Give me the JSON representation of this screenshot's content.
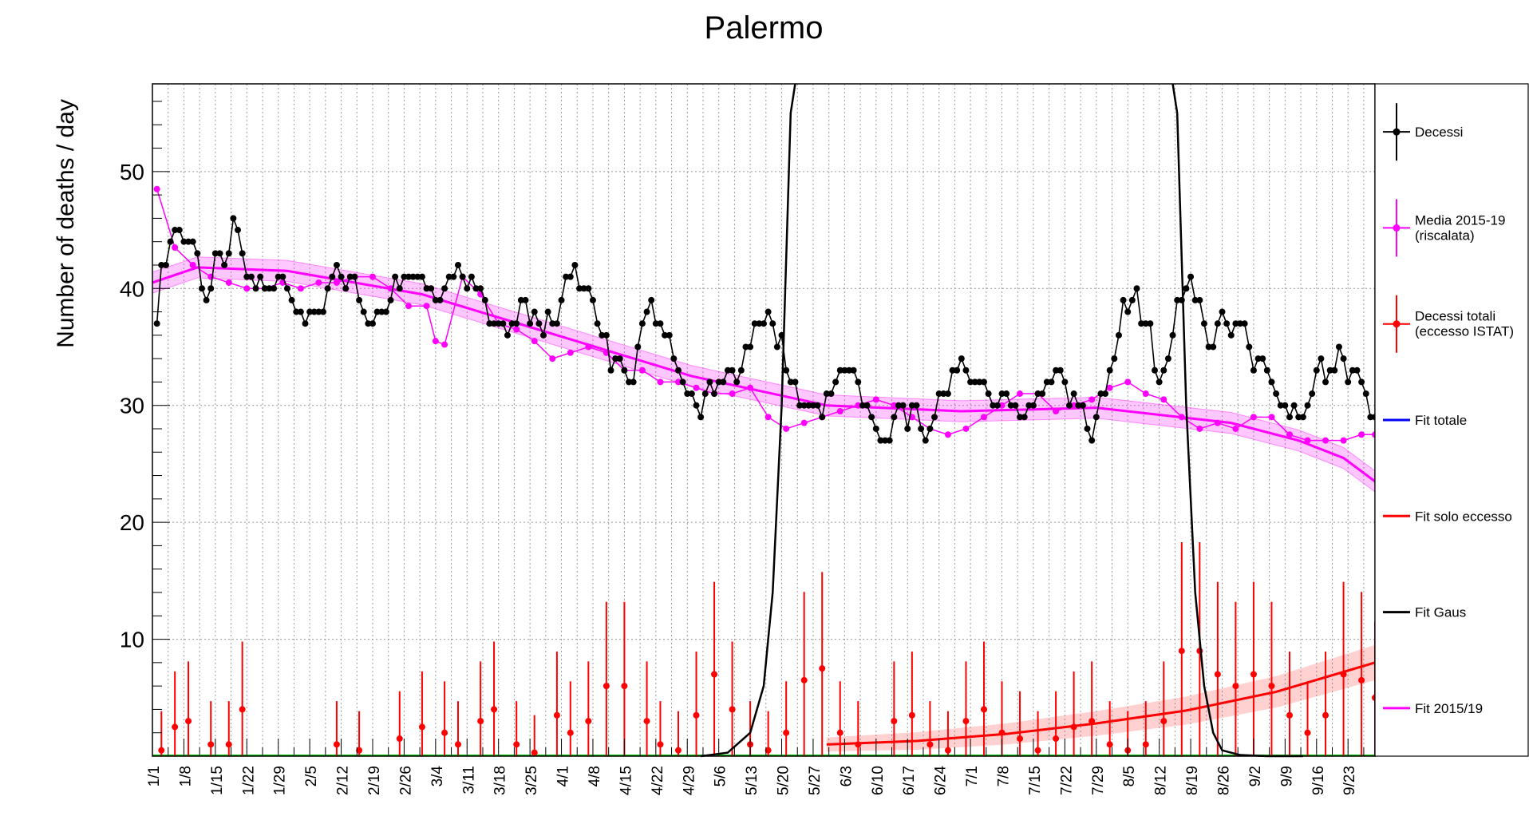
{
  "chart_data": {
    "type": "line",
    "title": "Palermo",
    "xlabel": "",
    "ylabel": "Number of deaths / day",
    "x_range_days": [
      0,
      272
    ],
    "ylim": [
      0,
      57.5
    ],
    "grid": true,
    "legend_position": "right",
    "y_ticks": [
      10,
      20,
      30,
      40,
      50
    ],
    "x_tick_labels": [
      "1/1",
      "1/8",
      "1/15",
      "1/22",
      "1/29",
      "2/5",
      "2/12",
      "2/19",
      "2/26",
      "3/4",
      "3/11",
      "3/18",
      "3/25",
      "4/1",
      "4/8",
      "4/15",
      "4/22",
      "4/29",
      "5/6",
      "5/13",
      "5/20",
      "5/27",
      "6/3",
      "6/10",
      "6/17",
      "6/24",
      "7/1",
      "7/8",
      "7/15",
      "7/22",
      "7/29",
      "8/5",
      "8/12",
      "8/19",
      "8/26",
      "9/2",
      "9/9",
      "9/16",
      "9/23"
    ],
    "legend": [
      {
        "label": "Decessi",
        "color": "#000000",
        "style": "marker"
      },
      {
        "label": "Media 2015-19 (riscalata)",
        "color": "#ff00ff",
        "style": "marker"
      },
      {
        "label": "Decessi totali (eccesso ISTAT)",
        "color": "#ff0000",
        "style": "marker"
      },
      {
        "label": "Fit totale",
        "color": "#0000ff",
        "style": "line"
      },
      {
        "label": "Fit solo eccesso",
        "color": "#ff0000",
        "style": "line"
      },
      {
        "label": "Fit Gaus",
        "color": "#000000",
        "style": "line"
      },
      {
        "label": "Fit 2015/19",
        "color": "#ff00ff",
        "style": "line"
      }
    ],
    "series": [
      {
        "name": "Decessi",
        "color": "#000000",
        "x_day": [
          1,
          2,
          3,
          4,
          5,
          6,
          7,
          8,
          9,
          10,
          11,
          12,
          13,
          14,
          15,
          16,
          17,
          18,
          19,
          20,
          21,
          22,
          23,
          24,
          25,
          26,
          27,
          28,
          29,
          30,
          31,
          32,
          33,
          34,
          35,
          36,
          37,
          38,
          39,
          40,
          41,
          42,
          43,
          44,
          45,
          46,
          47,
          48,
          49,
          50,
          51,
          52,
          53,
          54,
          55,
          56,
          57,
          58,
          59,
          60,
          61,
          62,
          63,
          64,
          65,
          66,
          67,
          68,
          69,
          70,
          71,
          72,
          73,
          74,
          75,
          76,
          77,
          78,
          79,
          80,
          81,
          82,
          83,
          84,
          85,
          86,
          87,
          88,
          89,
          90,
          91,
          92,
          93,
          94,
          95,
          96,
          97,
          98,
          99,
          100,
          101,
          102,
          103,
          104,
          105,
          106,
          107,
          108,
          109,
          110,
          111,
          112,
          113,
          114,
          115,
          116,
          117,
          118,
          119,
          120,
          121,
          122,
          123,
          124,
          125,
          126,
          127,
          128,
          129,
          130,
          131,
          132,
          133,
          134,
          135,
          136,
          137,
          138,
          139,
          140,
          141,
          142,
          143,
          144,
          145,
          146,
          147,
          148,
          149,
          150,
          151,
          152,
          153,
          154,
          155,
          156,
          157,
          158,
          159,
          160,
          161,
          162,
          163,
          164,
          165,
          166,
          167,
          168,
          169,
          170,
          171,
          172,
          173,
          174,
          175,
          176,
          177,
          178,
          179,
          180,
          181,
          182,
          183,
          184,
          185,
          186,
          187,
          188,
          189,
          190,
          191,
          192,
          193,
          194,
          195,
          196,
          197,
          198,
          199,
          200,
          201,
          202,
          203,
          204,
          205,
          206,
          207,
          208,
          209,
          210,
          211,
          212,
          213,
          214,
          215,
          216,
          217,
          218,
          219,
          220,
          221,
          222,
          223,
          224,
          225,
          226,
          227,
          228,
          229,
          230,
          231,
          232,
          233,
          234,
          235,
          236,
          237,
          238,
          239,
          240,
          241,
          242,
          243,
          244,
          245,
          246,
          247,
          248,
          249,
          250,
          251,
          252,
          253,
          254,
          255,
          256,
          257,
          258,
          259,
          260,
          261,
          262,
          263,
          264,
          265,
          266,
          267,
          268,
          269,
          270,
          271,
          272
        ],
        "values": [
          37,
          42,
          42,
          44,
          45,
          45,
          44,
          44,
          44,
          43,
          40,
          39,
          40,
          43,
          43,
          42,
          43,
          46,
          45,
          43,
          41,
          41,
          40,
          41,
          40,
          40,
          40,
          41,
          41,
          40,
          39,
          38,
          38,
          37,
          38,
          38,
          38,
          38,
          40,
          41,
          42,
          41,
          40,
          41,
          41,
          39,
          38,
          37,
          37,
          38,
          38,
          38,
          39,
          41,
          40,
          41,
          41,
          41,
          41,
          41,
          40,
          40,
          39,
          39,
          40,
          41,
          41,
          42,
          41,
          40,
          41,
          40,
          40,
          39,
          37,
          37,
          37,
          37,
          36,
          37,
          37,
          39,
          39,
          37,
          38,
          37,
          36,
          38,
          37,
          37,
          39,
          41,
          41,
          42,
          40,
          40,
          40,
          39,
          37,
          36,
          36,
          33,
          34,
          34,
          33,
          32,
          32,
          35,
          37,
          38,
          39,
          37,
          37,
          36,
          36,
          34,
          33,
          32,
          31,
          31,
          30,
          29,
          31,
          32,
          31,
          32,
          32,
          33,
          33,
          32,
          33,
          35,
          35,
          37,
          37,
          37,
          38,
          37,
          35,
          36,
          33,
          32,
          32,
          30,
          30,
          30,
          30,
          30,
          29,
          31,
          31,
          32,
          33,
          33,
          33,
          33,
          32,
          30,
          30,
          29,
          28,
          27,
          27,
          27,
          29,
          30,
          30,
          28,
          30,
          30,
          28,
          27,
          28,
          29,
          31,
          31,
          31,
          33,
          33,
          34,
          33,
          32,
          32,
          32,
          32,
          31,
          30,
          30,
          31,
          31,
          30,
          30,
          29,
          29,
          30,
          30,
          31,
          31,
          32,
          32,
          33,
          33,
          32,
          30,
          31,
          30,
          30,
          28,
          27,
          29,
          31,
          31,
          33,
          34,
          36,
          39,
          38,
          39,
          40,
          37,
          37,
          37,
          33,
          32,
          33,
          34,
          36,
          39,
          39,
          40,
          41,
          39,
          39,
          37,
          35,
          35,
          37,
          38,
          37,
          36,
          37,
          37,
          37,
          35,
          33,
          34,
          34,
          33,
          32,
          31,
          30,
          30,
          29,
          30,
          29,
          29,
          30,
          31,
          33,
          34,
          32,
          33,
          33,
          35,
          34,
          32,
          33,
          33,
          32,
          31,
          29,
          29
        ]
      },
      {
        "name": "Media 2015-19 (riscalata)",
        "color": "#ff00ff",
        "x_day": [
          1,
          5,
          9,
          13,
          17,
          21,
          25,
          29,
          33,
          37,
          41,
          45,
          49,
          53,
          57,
          61,
          63,
          65,
          69,
          73,
          77,
          81,
          85,
          89,
          93,
          97,
          101,
          105,
          109,
          113,
          117,
          121,
          125,
          129,
          133,
          137,
          141,
          145,
          149,
          153,
          157,
          161,
          165,
          169,
          173,
          177,
          181,
          185,
          189,
          193,
          197,
          201,
          205,
          209,
          213,
          217,
          221,
          225,
          229,
          233,
          237,
          241,
          245,
          249,
          253,
          257,
          261,
          265,
          269,
          272
        ],
        "values": [
          48.5,
          43.5,
          42,
          41,
          40.5,
          40,
          40,
          40.5,
          40,
          40.5,
          40.5,
          41,
          41,
          40,
          38.5,
          38.5,
          35.5,
          35.2,
          41,
          39.5,
          37,
          36.5,
          35.5,
          34,
          34.5,
          35,
          34.5,
          33,
          33,
          32,
          32,
          31.5,
          31,
          31,
          31.5,
          29,
          28,
          28.5,
          29,
          29.5,
          30,
          30.5,
          30,
          29,
          28,
          27.5,
          28,
          29,
          30,
          31,
          31,
          29.5,
          30,
          30.5,
          31.5,
          32,
          31,
          30.5,
          29,
          28,
          28.5,
          28,
          29,
          29,
          27.5,
          27,
          27,
          27,
          27.5,
          27.5
        ]
      },
      {
        "name": "Decessi totali (eccesso ISTAT)",
        "color": "#ff0000",
        "x_day": [
          2,
          5,
          8,
          13,
          17,
          20,
          41,
          46,
          55,
          60,
          65,
          68,
          73,
          76,
          81,
          85,
          90,
          93,
          97,
          101,
          105,
          110,
          113,
          117,
          121,
          125,
          129,
          133,
          137,
          141,
          145,
          149,
          153,
          157,
          165,
          169,
          173,
          177,
          181,
          185,
          189,
          193,
          197,
          201,
          205,
          209,
          213,
          217,
          221,
          225,
          229,
          233,
          237,
          241,
          245,
          249,
          253,
          257,
          261,
          265,
          269,
          272
        ],
        "values": [
          0.5,
          2.5,
          3,
          1,
          1,
          4,
          1,
          0.5,
          1.5,
          2.5,
          2,
          1,
          3,
          4,
          1,
          0.3,
          3.5,
          2,
          3,
          6,
          6,
          3,
          1,
          0.5,
          3.5,
          7,
          4,
          1,
          0.5,
          2,
          6.5,
          7.5,
          2,
          1,
          3,
          3.5,
          1,
          0.5,
          3,
          4,
          2,
          1.5,
          0.5,
          1.5,
          2.5,
          3,
          1,
          0.5,
          1,
          3,
          9,
          9,
          7,
          6,
          7,
          6,
          3.5,
          2,
          3.5,
          7,
          6.5,
          5
        ]
      },
      {
        "name": "Fit solo eccesso",
        "color": "#ff0000",
        "x_day": [
          150,
          170,
          190,
          210,
          230,
          250,
          272
        ],
        "values": [
          1.0,
          1.3,
          1.9,
          2.8,
          3.9,
          5.5,
          8.0
        ]
      },
      {
        "name": "Fit 2015/19",
        "color": "#ff00ff",
        "x_day": [
          0,
          10,
          30,
          60,
          90,
          120,
          150,
          180,
          210,
          240,
          255,
          265,
          272
        ],
        "values": [
          40.5,
          41.8,
          41.5,
          39.5,
          36,
          32.5,
          30,
          29.5,
          29.8,
          28.5,
          27,
          25.5,
          23.5
        ]
      },
      {
        "name": "Fit Gaus",
        "color": "#000000",
        "x_day": [
          122,
          128,
          133,
          136,
          138,
          140,
          142,
          143,
          227,
          228,
          230,
          232,
          234,
          236,
          238,
          242,
          248,
          256
        ],
        "values": [
          0,
          0.3,
          2,
          6,
          14,
          30,
          55,
          70,
          70,
          55,
          30,
          14,
          6,
          2,
          0.5,
          0.1,
          0,
          0
        ]
      }
    ]
  }
}
